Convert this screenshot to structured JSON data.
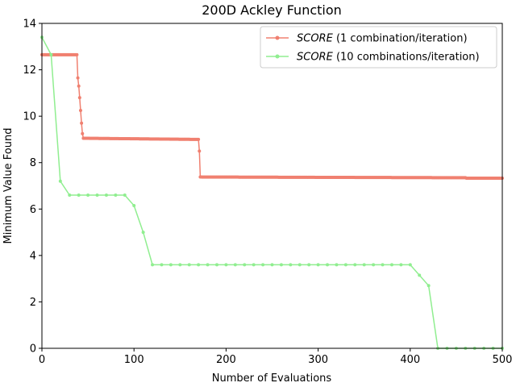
{
  "chart_data": {
    "type": "line",
    "title": "200D Ackley Function",
    "xlabel": "Number of Evaluations",
    "ylabel": "Minimum Value Found",
    "xlim": [
      0,
      500
    ],
    "ylim": [
      0,
      14
    ],
    "xticks": [
      0,
      100,
      200,
      300,
      400,
      500
    ],
    "yticks": [
      0,
      2,
      4,
      6,
      8,
      10,
      12,
      14
    ],
    "grid": false,
    "legend_position": "top-right",
    "series": [
      {
        "name_italic": "SCORE",
        "name_rest": " (1 combination/iteration)",
        "color": "#f08070",
        "step": 1,
        "points": [
          [
            0,
            12.65
          ],
          [
            38,
            12.65
          ],
          [
            39,
            11.65
          ],
          [
            40,
            11.3
          ],
          [
            41,
            10.8
          ],
          [
            42,
            10.25
          ],
          [
            43,
            9.7
          ],
          [
            44,
            9.25
          ],
          [
            45,
            9.05
          ],
          [
            170,
            9.0
          ],
          [
            171,
            8.5
          ],
          [
            172,
            7.38
          ],
          [
            460,
            7.35
          ],
          [
            461,
            7.33
          ],
          [
            500,
            7.33
          ]
        ]
      },
      {
        "name_italic": "SCORE",
        "name_rest": " (10 combinations/iteration)",
        "color": "#90ee90",
        "step": 10,
        "points": [
          [
            0,
            13.4
          ],
          [
            10,
            12.65
          ],
          [
            20,
            7.2
          ],
          [
            30,
            6.6
          ],
          [
            90,
            6.6
          ],
          [
            100,
            6.15
          ],
          [
            110,
            5.0
          ],
          [
            120,
            3.6
          ],
          [
            400,
            3.6
          ],
          [
            410,
            3.15
          ],
          [
            420,
            2.7
          ],
          [
            430,
            0.0
          ],
          [
            500,
            0.0
          ]
        ]
      }
    ]
  }
}
